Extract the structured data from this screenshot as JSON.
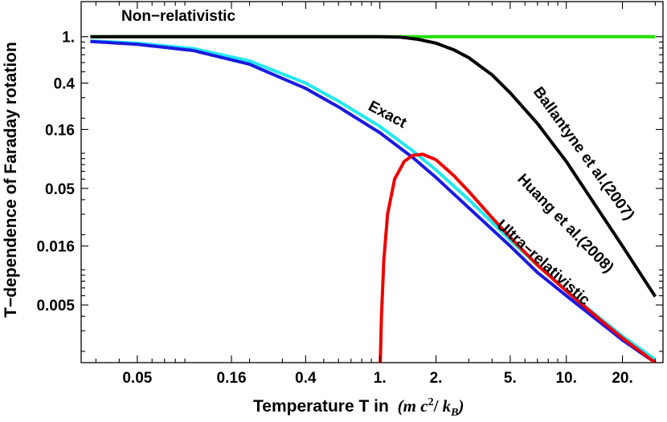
{
  "chart_data": {
    "type": "line",
    "title": "",
    "xlabel": "Temperature T in",
    "xlabel_units": {
      "m": "m",
      "c": "c",
      "exp": "2",
      "slash": "/",
      "k": "k",
      "sub": "B"
    },
    "ylabel": "T−dependence of Faraday rotation",
    "x_scale": "log",
    "y_scale": "log",
    "xlim": [
      0.025,
      33
    ],
    "ylim": [
      0.0016,
      2.0
    ],
    "x_ticks": [
      {
        "value": 0.05,
        "label": "0.05"
      },
      {
        "value": 0.16,
        "label": "0.16"
      },
      {
        "value": 0.4,
        "label": "0.4"
      },
      {
        "value": 1,
        "label": "1."
      },
      {
        "value": 2,
        "label": "2."
      },
      {
        "value": 5,
        "label": "5."
      },
      {
        "value": 10,
        "label": "10."
      },
      {
        "value": 20,
        "label": "20."
      }
    ],
    "y_ticks": [
      {
        "value": 1,
        "label": "1."
      },
      {
        "value": 0.4,
        "label": "0.4"
      },
      {
        "value": 0.16,
        "label": "0.16"
      },
      {
        "value": 0.05,
        "label": "0.05"
      },
      {
        "value": 0.016,
        "label": "0.016"
      },
      {
        "value": 0.005,
        "label": "0.005"
      }
    ],
    "series": [
      {
        "name": "Non−relativistic",
        "color": "#22e000",
        "x": [
          0.028,
          0.1,
          0.5,
          1,
          2,
          5,
          10,
          20,
          30
        ],
        "y": [
          1,
          1,
          1,
          1,
          1,
          1,
          1,
          1,
          1
        ]
      },
      {
        "name": "Ballantyne et al.(2007)",
        "color": "#000000",
        "x": [
          0.028,
          0.1,
          0.5,
          1.0,
          1.3,
          1.6,
          2.0,
          2.5,
          3.0,
          4.0,
          5.0,
          7.0,
          10.0,
          15.0,
          20.0,
          30.0
        ],
        "y": [
          1,
          1,
          1,
          1.0,
          0.99,
          0.95,
          0.88,
          0.77,
          0.66,
          0.47,
          0.33,
          0.18,
          0.085,
          0.032,
          0.016,
          0.0059
        ]
      },
      {
        "name": "Huang et al.(2008)",
        "color": "#22e8f0",
        "x": [
          0.028,
          0.05,
          0.1,
          0.2,
          0.4,
          0.6,
          1.0,
          1.5,
          2.0,
          3.0,
          5.0,
          7.0,
          10.0,
          15.0,
          20.0,
          30.0
        ],
        "y": [
          0.92,
          0.88,
          0.79,
          0.62,
          0.4,
          0.28,
          0.17,
          0.105,
          0.072,
          0.04,
          0.018,
          0.011,
          0.0066,
          0.0039,
          0.0027,
          0.0017
        ]
      },
      {
        "name": "Exact",
        "color": "#1a1ae0",
        "x": [
          0.028,
          0.05,
          0.1,
          0.2,
          0.4,
          0.6,
          1.0,
          1.5,
          2.0,
          3.0,
          5.0,
          7.0,
          10.0,
          15.0,
          20.0,
          30.0
        ],
        "y": [
          0.91,
          0.86,
          0.76,
          0.58,
          0.36,
          0.25,
          0.15,
          0.092,
          0.062,
          0.034,
          0.016,
          0.0095,
          0.006,
          0.0036,
          0.0025,
          0.0016
        ]
      },
      {
        "name": "Ultra−relativistic",
        "color": "#ee0000",
        "x": [
          1.005,
          1.02,
          1.05,
          1.1,
          1.2,
          1.35,
          1.5,
          1.7,
          2.0,
          2.5,
          3.0,
          4.0,
          5.0,
          7.0,
          10.0,
          15.0,
          20.0,
          30.0
        ],
        "y": [
          0.0016,
          0.004,
          0.012,
          0.03,
          0.06,
          0.085,
          0.096,
          0.098,
          0.088,
          0.064,
          0.047,
          0.028,
          0.019,
          0.011,
          0.0066,
          0.0038,
          0.0026,
          0.0016
        ]
      }
    ],
    "annotations": [
      {
        "text": "Non−relativistic",
        "series": "Non−relativistic"
      },
      {
        "text": "Exact",
        "series": "Exact"
      },
      {
        "text": "Ballantyne et al.(2007)",
        "series": "Ballantyne et al.(2007)"
      },
      {
        "text": "Huang et al.(2008)",
        "series": "Huang et al.(2008)"
      },
      {
        "text": "Ultra−relativistic",
        "series": "Ultra−relativistic"
      }
    ],
    "grid": false,
    "legend": "none"
  }
}
